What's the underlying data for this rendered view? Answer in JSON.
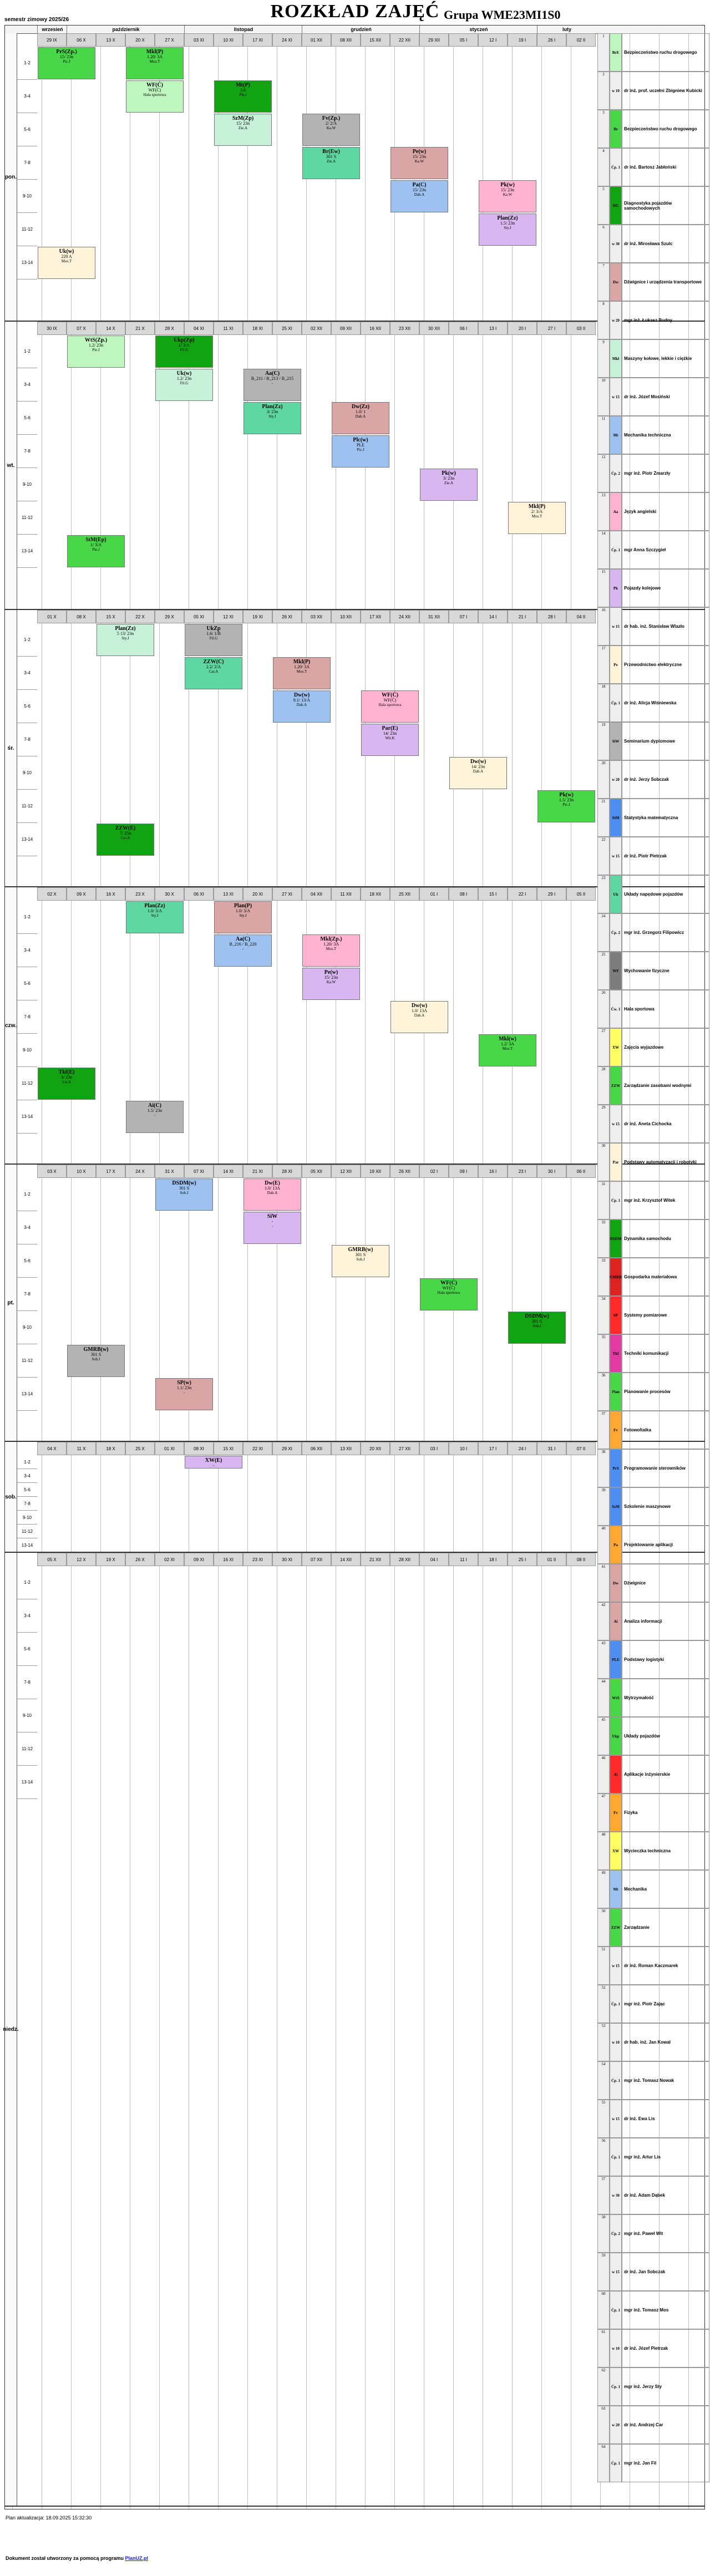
{
  "header": {
    "semester": "semestr zimowy 2025/26",
    "title": "ROZKŁAD ZAJĘĆ",
    "group": "Grupa WME23MI1S0"
  },
  "months": [
    "wrzesień",
    "październik",
    "listopad",
    "grudzień",
    "styczeń",
    "luty"
  ],
  "days": [
    "pon.",
    "wt.",
    "śr.",
    "czw.",
    "pt.",
    "sob.",
    "niedz."
  ],
  "dates": {
    "mon": [
      "29 IX",
      "06 X",
      "13 X",
      "20 X",
      "27 X",
      "03 XI",
      "10 XI",
      "17 XI",
      "24 XI",
      "01 XII",
      "08 XII",
      "15 XII",
      "22 XII",
      "29 XII",
      "05 I",
      "12 I",
      "19 I",
      "26 I",
      "02 II"
    ],
    "tue": [
      "30 IX",
      "07 X",
      "14 X",
      "21 X",
      "28 X",
      "04 XI",
      "11 XI",
      "18 XI",
      "25 XI",
      "02 XII",
      "09 XII",
      "16 XII",
      "23 XII",
      "30 XII",
      "06 I",
      "13 I",
      "20 I",
      "27 I",
      "03 II"
    ],
    "wed": [
      "01 X",
      "08 X",
      "15 X",
      "22 X",
      "29 X",
      "05 XI",
      "12 XI",
      "19 XI",
      "26 XI",
      "03 XII",
      "10 XII",
      "17 XII",
      "24 XII",
      "31 XII",
      "07 I",
      "14 I",
      "21 I",
      "28 I",
      "04 II"
    ],
    "thu": [
      "02 X",
      "09 X",
      "16 X",
      "23 X",
      "30 X",
      "06 XI",
      "13 XI",
      "20 XI",
      "27 XI",
      "04 XII",
      "11 XII",
      "18 XII",
      "25 XII",
      "01 I",
      "08 I",
      "15 I",
      "22 I",
      "29 I",
      "05 II"
    ],
    "fri": [
      "03 X",
      "10 X",
      "17 X",
      "24 X",
      "31 X",
      "07 XI",
      "14 XI",
      "21 XI",
      "28 XI",
      "05 XII",
      "12 XII",
      "19 XII",
      "26 XII",
      "02 I",
      "09 I",
      "16 I",
      "23 I",
      "30 I",
      "06 II"
    ],
    "sat": [
      "04 X",
      "11 X",
      "18 X",
      "25 X",
      "01 XI",
      "08 XI",
      "15 XI",
      "22 XI",
      "29 XI",
      "06 XII",
      "13 XII",
      "20 XII",
      "27 XII",
      "03 I",
      "10 I",
      "17 I",
      "24 I",
      "31 I",
      "07 II"
    ],
    "sun": [
      "05 X",
      "12 X",
      "19 X",
      "26 X",
      "02 XI",
      "09 XI",
      "16 XI",
      "23 XI",
      "30 XI",
      "07 XII",
      "14 XII",
      "21 XII",
      "28 XII",
      "04 I",
      "11 I",
      "18 I",
      "25 I",
      "01 II",
      "08 II"
    ]
  },
  "hours": [
    "1-2",
    "3-4",
    "5-6",
    "7-8",
    "9-10",
    "11-12",
    "13-14"
  ],
  "events": {
    "mon": [
      {
        "code": "PrS(Zp.)",
        "room": "15/ 23n",
        "teacher": "Pic.J"
      },
      {
        "code": "WF(Ć)",
        "room": "WF(Ć)",
        "teacher": "Hala sportowa"
      },
      {
        "code": "SzM(Zp)",
        "room": "15/ 23n",
        "teacher": "Zie.A"
      },
      {
        "code": "Br(Ew)",
        "room": "301 S",
        "teacher": "Zie.A"
      },
      {
        "code": "Pa(C)",
        "room": "15/ 23n",
        "teacher": "Dab.A"
      },
      {
        "code": "Plan(Zz)",
        "room": "1.5/ 23n",
        "teacher": "Sty.J"
      },
      {
        "code": "Uk(w)",
        "room": "220 A",
        "teacher": "Mos.T"
      },
      {
        "code": "Mkl(P)",
        "room": "1.20/ 3A",
        "teacher": "Mos.T"
      },
      {
        "code": "Mt(P)",
        "room": "3.6",
        "teacher": "Pis.J"
      },
      {
        "code": "Fv(Zp.)",
        "room": "2/ 2/A",
        "teacher": "Ka.W"
      },
      {
        "code": "Pe(w)",
        "room": "15/ 23n",
        "teacher": "Ka.W"
      },
      {
        "code": "Pk(w)",
        "room": "15/ 23n",
        "teacher": "Ka.W"
      }
    ],
    "tue": [
      {
        "code": "WtS(Zp.)",
        "room": "1.2/ 23n",
        "teacher": "Pie.J"
      },
      {
        "code": "Uk(w)",
        "room": "1.2/ 23n",
        "teacher": "Fil.G"
      },
      {
        "code": "Plan(Zz)",
        "room": "3/ 23n",
        "teacher": "Sty.J"
      },
      {
        "code": "Plc(w)",
        "room": "PLE",
        "teacher": "Pic.J"
      },
      {
        "code": "Pk(w)",
        "room": "3/ 23n",
        "teacher": "Zie.A"
      },
      {
        "code": "Mkl(P)",
        "room": "2/ 3/A",
        "teacher": "Mos.T"
      },
      {
        "code": "StM(Ep)",
        "room": "1/ 3/A",
        "teacher": "Pie.J"
      },
      {
        "code": "Ukp(Zp)",
        "room": "1/ 3/A",
        "teacher": "Fil.G"
      },
      {
        "code": "Aa(C)",
        "room": "B_211 / B_213 / B_215",
        "teacher": "-"
      },
      {
        "code": "Dw(Zz)",
        "room": "1.0/ 1",
        "teacher": "Dab.A"
      }
    ],
    "wed": [
      {
        "code": "Plan(Zz)",
        "room": "5 13/ 23n",
        "teacher": "Sty.J"
      },
      {
        "code": "ZZW(C)",
        "room": "2.2/ 2/A",
        "teacher": "Car.A"
      },
      {
        "code": "Dw(w)",
        "room": "8.1/ 13/A",
        "teacher": "Dab.A"
      },
      {
        "code": "Par(E)",
        "room": "14/ 23n",
        "teacher": "Wit.K"
      },
      {
        "code": "Dw(w)",
        "room": "14/ 23n",
        "teacher": "Dab.A"
      },
      {
        "code": "Pk(w)",
        "room": "1.5/ 23n",
        "teacher": "Pic.J"
      },
      {
        "code": "ZZW(E)",
        "room": "7/ 25n",
        "teacher": "Car.A"
      },
      {
        "code": "UkZp",
        "room": "1.6/ 1/B",
        "teacher": "Fil.G"
      },
      {
        "code": "Mkl(P)",
        "room": "1.20/ 3A",
        "teacher": "Mos.T"
      },
      {
        "code": "WF(Ć)",
        "room": "WF(Ć)",
        "teacher": "Hala sportowa"
      }
    ],
    "thu": [
      {
        "code": "Plan(Zz)",
        "room": "1.0/ 3/A",
        "teacher": "Sty.J"
      },
      {
        "code": "Aa(C)",
        "room": "B_216 / B_220",
        "teacher": "-"
      },
      {
        "code": "Pe(w)",
        "room": "15/ 23n",
        "teacher": "Ka.W"
      },
      {
        "code": "Dw(w)",
        "room": "1.0/ 13A",
        "teacher": "Dab.A"
      },
      {
        "code": "Mkl(w)",
        "room": "1.2/ 3A",
        "teacher": "Mos.T"
      },
      {
        "code": "Tkf(E)",
        "room": "3/ 23n",
        "teacher": "Lis.A"
      },
      {
        "code": "Ai(C)",
        "room": "1.5/ 23n",
        "teacher": "-"
      },
      {
        "code": "Plan(P)",
        "room": "1.0/ 3/A",
        "teacher": "Sty.J"
      },
      {
        "code": "Mkl(Zp.)",
        "room": "1.20/ 3A",
        "teacher": "Mos.T"
      }
    ],
    "fri": [
      {
        "code": "DSDM(w)",
        "room": "301 S",
        "teacher": "Sob.J"
      },
      {
        "code": "SiW",
        "room": "-",
        "teacher": "-"
      },
      {
        "code": "GMRB(w)",
        "room": "301 S",
        "teacher": "Sob.J"
      },
      {
        "code": "WF(Ć)",
        "room": "WF(Ć)",
        "teacher": "Hala sportowa"
      },
      {
        "code": "DSDM(w)",
        "room": "301 S",
        "teacher": "Sob.J"
      },
      {
        "code": "GMRB(w)",
        "room": "301 S",
        "teacher": "Sob.J"
      },
      {
        "code": "SP(w)",
        "room": "1.1/ 23n",
        "teacher": "-"
      },
      {
        "code": "Dw(E)",
        "room": "1.0/ 13A",
        "teacher": "Dab.A"
      }
    ],
    "sat": [
      {
        "code": "XW(E)",
        "room": "-",
        "teacher": "-"
      }
    ]
  },
  "legend": [
    {
      "code": "BrE",
      "text": "Bezpieczeństwo ruchu drogowego",
      "color": "#bff5bf"
    },
    {
      "code": "w 10",
      "text": "dr inż. prof. uczelni Zbigniew Kubicki",
      "color": "#eeeeee"
    },
    {
      "code": "Br",
      "text": "Bezpieczeństwo ruchu drogowego",
      "color": "#49d649"
    },
    {
      "code": "Ćp. 1",
      "text": "dr inż. Bartosz Jabłoński",
      "color": "#eeeeee"
    },
    {
      "code": "DG",
      "text": "Diagnostyka pojazdów samochodowych",
      "color": "#12a312"
    },
    {
      "code": "w 30",
      "text": "dr inż. Mirosława Szulc",
      "color": "#eeeeee"
    },
    {
      "code": "Dw",
      "text": "Dźwignice i urządzenia transportowe",
      "color": "#d9a5a5"
    },
    {
      "code": "w 20",
      "text": "mgr inż. Łukasz Budny",
      "color": "#eeeeee"
    },
    {
      "code": "Mkl",
      "text": "Maszyny kołowe, lekkie i ciężkie",
      "color": "#c7f0d9"
    },
    {
      "code": "w 15",
      "text": "dr inż. Józef Mosiński",
      "color": "#eeeeee"
    },
    {
      "code": "Mt",
      "text": "Mechanika techniczna",
      "color": "#9ec2f0"
    },
    {
      "code": "Ćp. 2",
      "text": "mgr inż. Piotr Zmarzły",
      "color": "#eeeeee"
    },
    {
      "code": "Aa",
      "text": "Język angielski",
      "color": "#ffb3d1"
    },
    {
      "code": "Ćp. 1",
      "text": "mgr Anna Szczygieł",
      "color": "#eeeeee"
    },
    {
      "code": "Pk",
      "text": "Pojazdy kolejowe",
      "color": "#d8b6f0"
    },
    {
      "code": "w 15",
      "text": "dr hab. inż. Stanisław Wlazło",
      "color": "#eeeeee"
    },
    {
      "code": "Pe",
      "text": "Przewodnictwo elektryczne",
      "color": "#fff4d9"
    },
    {
      "code": "Ćp. 1",
      "text": "dr inż. Alicja Wiśniewska",
      "color": "#eeeeee"
    },
    {
      "code": "SiW",
      "text": "Seminarium dyplomowe",
      "color": "#b3b3b3"
    },
    {
      "code": "w 20",
      "text": "dr inż. Jerzy Sobczak",
      "color": "#eeeeee"
    },
    {
      "code": "StM",
      "text": "Statystyka matematyczna",
      "color": "#4d8ef0"
    },
    {
      "code": "w 15",
      "text": "dr inż. Piotr Pietrzak",
      "color": "#eeeeee"
    },
    {
      "code": "Uk",
      "text": "Układy napędowe pojazdów",
      "color": "#5fd7a2"
    },
    {
      "code": "Ćp. 2",
      "text": "mgr inż. Grzegorz Filipowicz",
      "color": "#eeeeee"
    },
    {
      "code": "WF",
      "text": "Wychowanie fizyczne",
      "color": "#7d7d7d"
    },
    {
      "code": "Ćw. 1",
      "text": "Hala sportowa",
      "color": "#eeeeee"
    },
    {
      "code": "XW",
      "text": "Zajęcia wyjazdowe",
      "color": "#ffff66"
    },
    {
      "code": "ZZW",
      "text": "Zarządzanie zasobami wodnymi",
      "color": "#49d649"
    },
    {
      "code": "w 15",
      "text": "dr inż. Aneta Cichocka",
      "color": "#eeeeee"
    },
    {
      "code": "Par",
      "text": "Podstawy automatyzacji i robotyki",
      "color": "#fff4d9"
    },
    {
      "code": "Ćp. 1",
      "text": "mgr inż. Krzysztof Witek",
      "color": "#eeeeee"
    },
    {
      "code": "DSDM",
      "text": "Dynamika samochodu",
      "color": "#12a312"
    },
    {
      "code": "GMRB",
      "text": "Gospodarka materiałowa",
      "color": "#dd2222"
    },
    {
      "code": "SP",
      "text": "Systemy pomiarowe",
      "color": "#ff2a2a"
    },
    {
      "code": "Tkf",
      "text": "Techniki komunikacji",
      "color": "#e23aa0"
    },
    {
      "code": "Plan",
      "text": "Planowanie procesów",
      "color": "#49d649"
    },
    {
      "code": "Fv",
      "text": "Fotowoltaika",
      "color": "#ffa733"
    },
    {
      "code": "PrS",
      "text": "Programowanie sterowników",
      "color": "#4d8ef0"
    },
    {
      "code": "SzM",
      "text": "Szkolenie maszynowe",
      "color": "#4d8ef0"
    },
    {
      "code": "Pa",
      "text": "Projektowanie aplikacji",
      "color": "#ffa733"
    },
    {
      "code": "Dw",
      "text": "Dźwignice",
      "color": "#d9a5a5"
    },
    {
      "code": "Ai",
      "text": "Analiza informacji",
      "color": "#d9a5a5"
    },
    {
      "code": "PLE",
      "text": "Podstawy logistyki",
      "color": "#4d8ef0"
    },
    {
      "code": "WtS",
      "text": "Wytrzymałość",
      "color": "#49d649"
    },
    {
      "code": "Ukp",
      "text": "Układy pojazdów",
      "color": "#49d649"
    },
    {
      "code": "Ai",
      "text": "Aplikacje inżynierskie",
      "color": "#ff2a2a"
    },
    {
      "code": "Fv",
      "text": "Fizyka",
      "color": "#ffa733"
    },
    {
      "code": "XW",
      "text": "Wycieczka techniczna",
      "color": "#ffff66"
    },
    {
      "code": "Mt",
      "text": "Mechanika",
      "color": "#9ec2f0"
    },
    {
      "code": "ZZW",
      "text": "Zarządzanie",
      "color": "#49d649"
    },
    {
      "code": "w 15",
      "text": "dr inż. Roman Kaczmarek",
      "color": "#eeeeee"
    },
    {
      "code": "Ćp. 1",
      "text": "mgr inż. Piotr Zając",
      "color": "#eeeeee"
    },
    {
      "code": "w 10",
      "text": "dr hab. inż. Jan Kowal",
      "color": "#eeeeee"
    },
    {
      "code": "Ćp. 1",
      "text": "mgr inż. Tomasz Nowak",
      "color": "#eeeeee"
    },
    {
      "code": "w 15",
      "text": "dr inż. Ewa Lis",
      "color": "#eeeeee"
    },
    {
      "code": "Ćp. 1",
      "text": "mgr inż. Artur Lis",
      "color": "#eeeeee"
    },
    {
      "code": "w 30",
      "text": "dr inż. Adam Dąbek",
      "color": "#eeeeee"
    },
    {
      "code": "Ćp. 2",
      "text": "mgr inż. Paweł Wit",
      "color": "#eeeeee"
    },
    {
      "code": "w 15",
      "text": "dr inż. Jan Sobczak",
      "color": "#eeeeee"
    },
    {
      "code": "Ćp. 1",
      "text": "mgr inż. Tomasz Mos",
      "color": "#eeeeee"
    },
    {
      "code": "w 10",
      "text": "dr inż. Józef Pietrzak",
      "color": "#eeeeee"
    },
    {
      "code": "Ćp. 1",
      "text": "mgr inż. Jerzy Sty",
      "color": "#eeeeee"
    },
    {
      "code": "w 20",
      "text": "dr inż. Andrzej Car",
      "color": "#eeeeee"
    },
    {
      "code": "Ćp. 1",
      "text": "mgr inż. Jan Fil",
      "color": "#eeeeee"
    }
  ],
  "footer": {
    "updated": "Plan aktualizacja: 18.09.2025 15:32:30",
    "generated_prefix": "Dokument został utworzony za pomocą programu",
    "generator": "PlanUZ.pl"
  }
}
